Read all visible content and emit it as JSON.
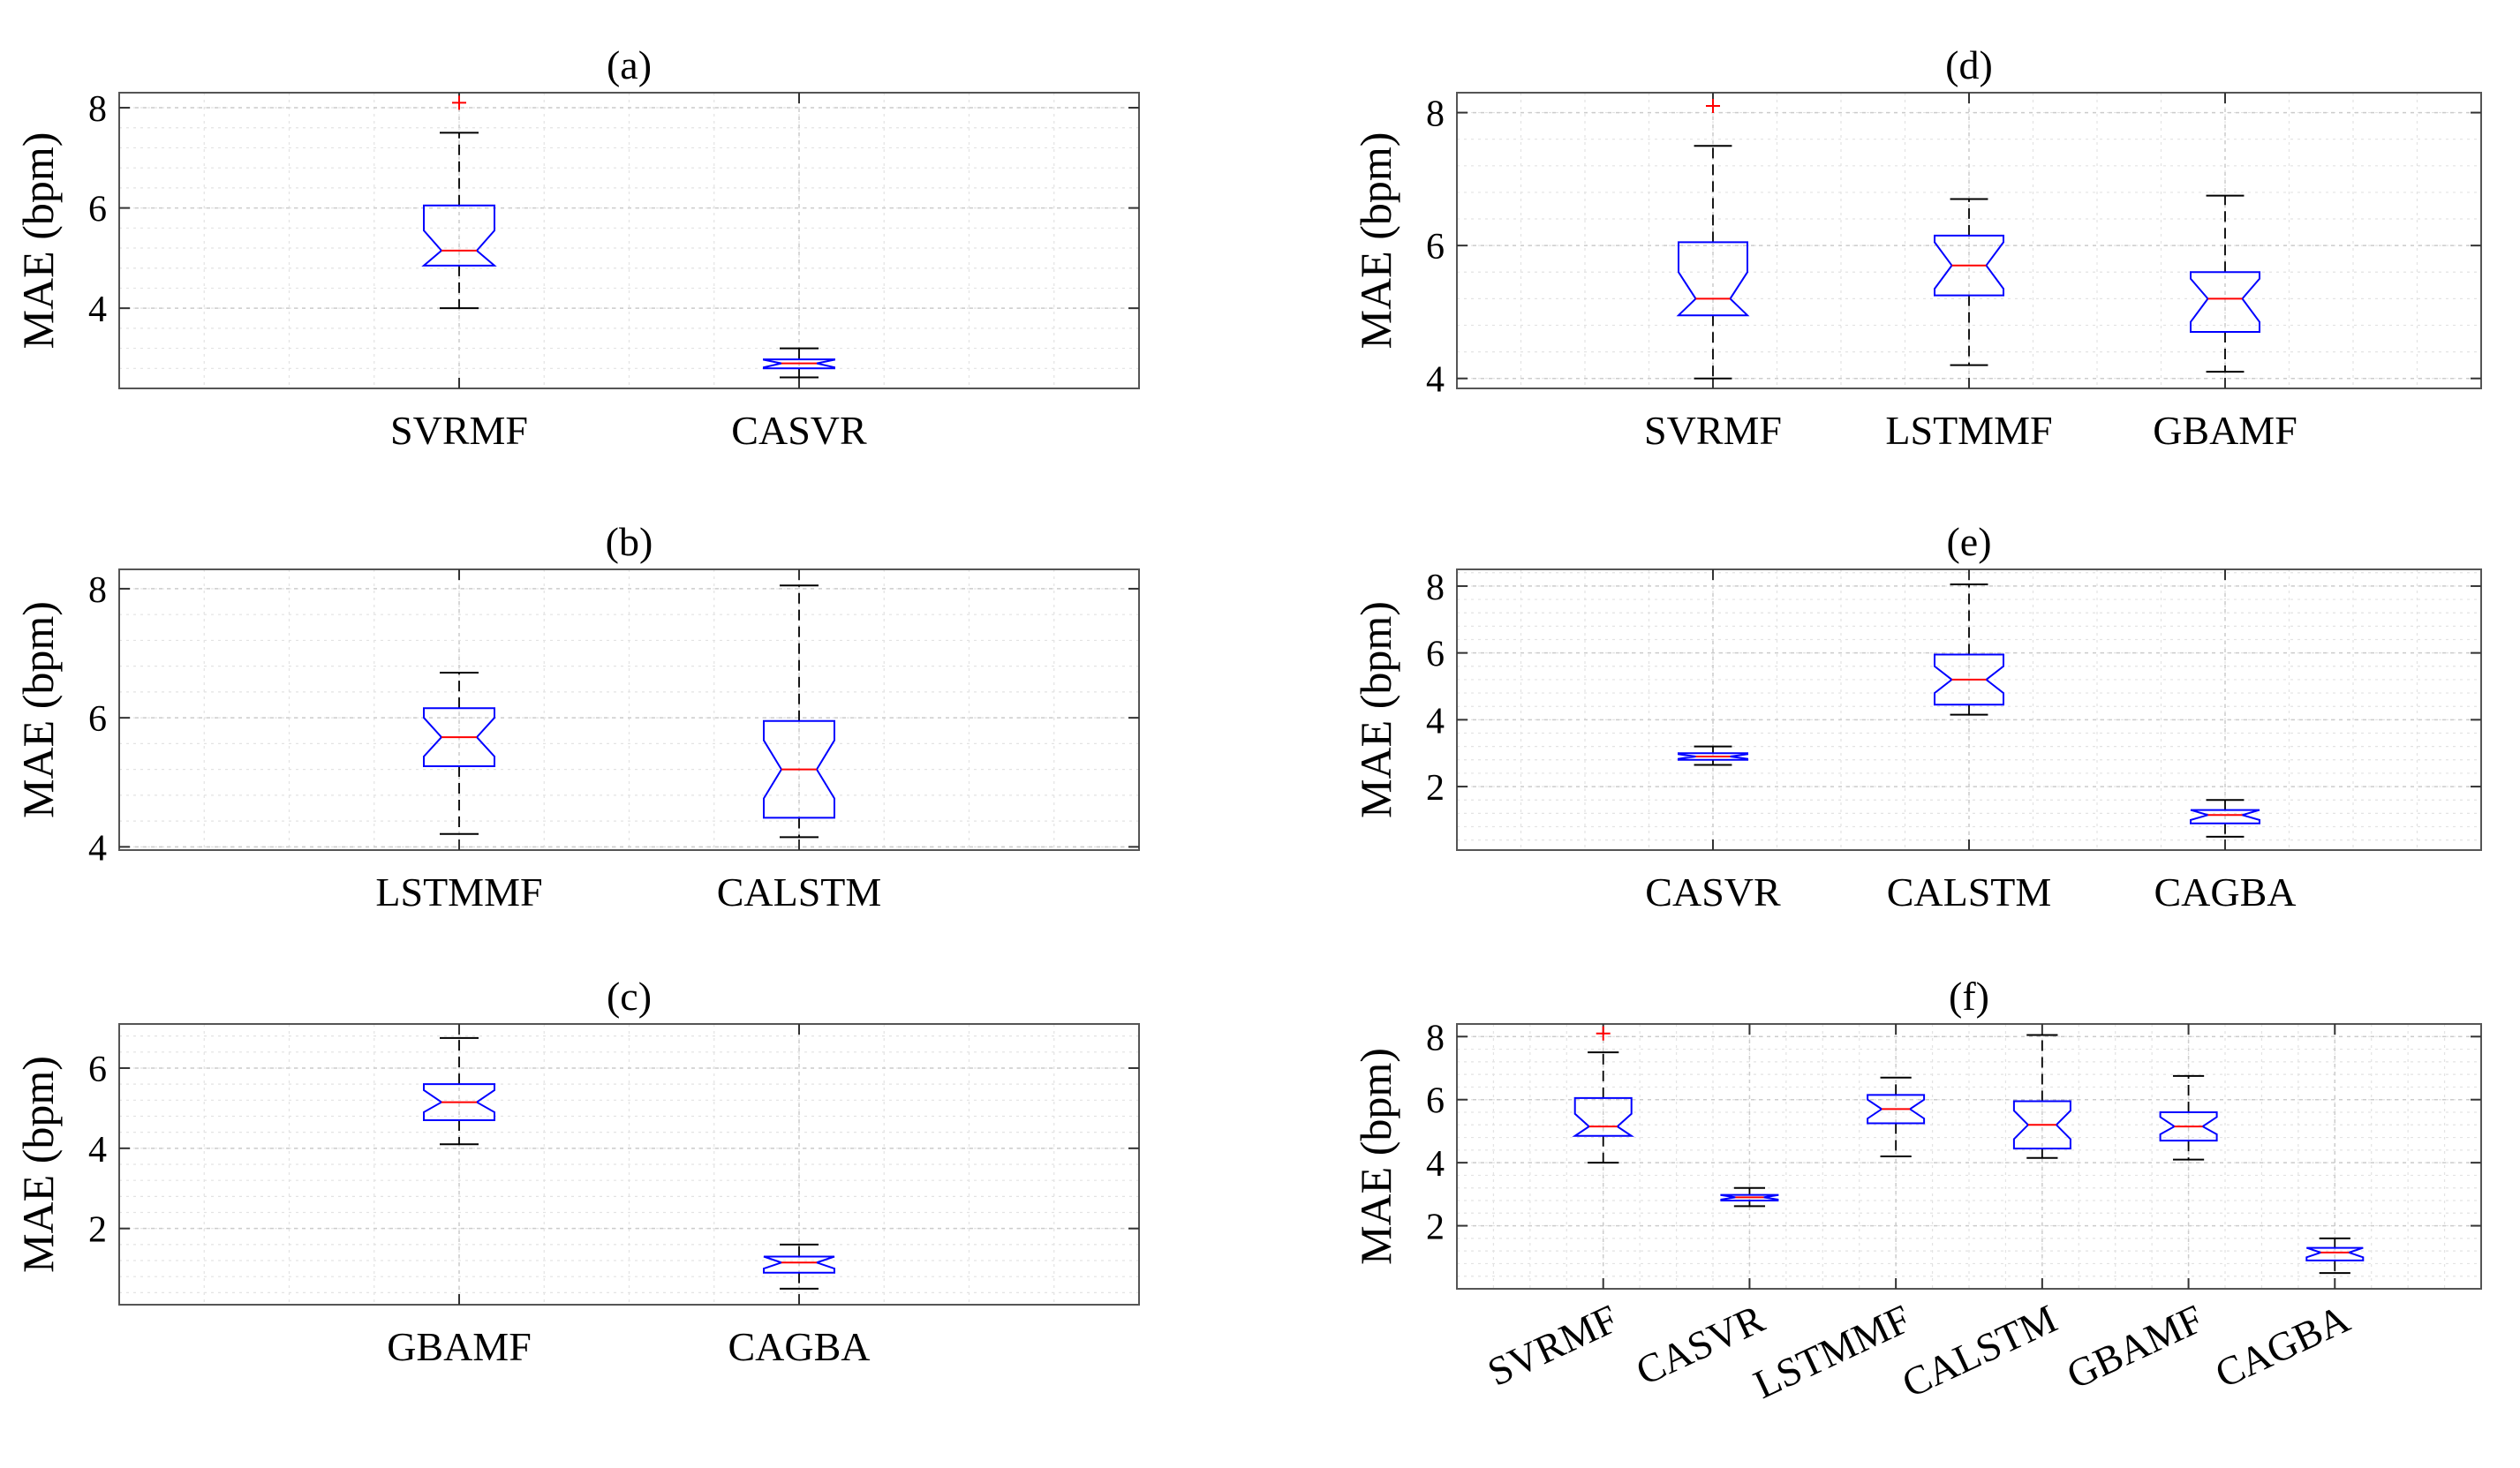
{
  "figure": {
    "background": "#ffffff",
    "box_color": "#0000ff",
    "median_color": "#ff0000",
    "whisker_color": "#000000",
    "outlier_color": "#ff0000",
    "grid_color": "#cccccc"
  },
  "chart_data": [
    {
      "panel": "a",
      "type": "boxplot",
      "title": "(a)",
      "xlabel": "",
      "ylabel": "MAE (bpm)",
      "ylim": [
        2.4,
        8.3
      ],
      "yticks": [
        4,
        6,
        8
      ],
      "grid": true,
      "notched": true,
      "categories": [
        "SVRMF",
        "CASVR"
      ],
      "boxes": [
        {
          "name": "SVRMF",
          "min": 4.0,
          "q1": 4.85,
          "median": 5.15,
          "q3": 6.05,
          "max": 7.5,
          "notch_low": 4.85,
          "notch_high": 5.55,
          "outliers": [
            8.1
          ]
        },
        {
          "name": "CASVR",
          "min": 2.62,
          "q1": 2.8,
          "median": 2.9,
          "q3": 2.98,
          "max": 3.2,
          "notch_low": 2.82,
          "notch_high": 2.97,
          "outliers": []
        }
      ]
    },
    {
      "panel": "b",
      "type": "boxplot",
      "title": "(b)",
      "xlabel": "",
      "ylabel": "MAE (bpm)",
      "ylim": [
        3.95,
        8.3
      ],
      "yticks": [
        4,
        6,
        8
      ],
      "grid": true,
      "notched": true,
      "categories": [
        "LSTMMF",
        "CALSTM"
      ],
      "boxes": [
        {
          "name": "LSTMMF",
          "min": 4.2,
          "q1": 5.25,
          "median": 5.7,
          "q3": 6.15,
          "max": 6.7,
          "notch_low": 5.4,
          "notch_high": 6.0,
          "outliers": []
        },
        {
          "name": "CALSTM",
          "min": 4.15,
          "q1": 4.45,
          "median": 5.2,
          "q3": 5.95,
          "max": 8.05,
          "notch_low": 4.75,
          "notch_high": 5.65,
          "outliers": []
        }
      ]
    },
    {
      "panel": "c",
      "type": "boxplot",
      "title": "(c)",
      "xlabel": "",
      "ylabel": "MAE (bpm)",
      "ylim": [
        0.1,
        7.1
      ],
      "yticks": [
        2,
        4,
        6
      ],
      "grid": true,
      "notched": true,
      "categories": [
        "GBAMF",
        "CAGBA"
      ],
      "boxes": [
        {
          "name": "GBAMF",
          "min": 4.1,
          "q1": 4.7,
          "median": 5.15,
          "q3": 5.6,
          "max": 6.75,
          "notch_low": 4.9,
          "notch_high": 5.45,
          "outliers": []
        },
        {
          "name": "CAGBA",
          "min": 0.5,
          "q1": 0.9,
          "median": 1.15,
          "q3": 1.3,
          "max": 1.6,
          "notch_low": 1.0,
          "notch_high": 1.3,
          "outliers": []
        }
      ]
    },
    {
      "panel": "d",
      "type": "boxplot",
      "title": "(d)",
      "xlabel": "",
      "ylabel": "MAE (bpm)",
      "ylim": [
        3.85,
        8.3
      ],
      "yticks": [
        4,
        6,
        8
      ],
      "grid": true,
      "notched": true,
      "categories": [
        "SVRMF",
        "LSTMMF",
        "GBAMF"
      ],
      "boxes": [
        {
          "name": "SVRMF",
          "min": 4.0,
          "q1": 4.95,
          "median": 5.2,
          "q3": 6.05,
          "max": 7.5,
          "notch_low": 4.8,
          "notch_high": 5.6,
          "outliers": [
            8.1
          ]
        },
        {
          "name": "LSTMMF",
          "min": 4.2,
          "q1": 5.25,
          "median": 5.7,
          "q3": 6.15,
          "max": 6.7,
          "notch_low": 5.35,
          "notch_high": 6.05,
          "outliers": []
        },
        {
          "name": "GBAMF",
          "min": 4.1,
          "q1": 4.7,
          "median": 5.2,
          "q3": 5.6,
          "max": 6.75,
          "notch_low": 4.85,
          "notch_high": 5.5,
          "outliers": []
        }
      ]
    },
    {
      "panel": "e",
      "type": "boxplot",
      "title": "(e)",
      "xlabel": "",
      "ylabel": "MAE (bpm)",
      "ylim": [
        0.1,
        8.5
      ],
      "yticks": [
        2,
        4,
        6,
        8
      ],
      "grid": true,
      "notched": true,
      "categories": [
        "CASVR",
        "CALSTM",
        "CAGBA"
      ],
      "boxes": [
        {
          "name": "CASVR",
          "min": 2.65,
          "q1": 2.8,
          "median": 2.9,
          "q3": 3.0,
          "max": 3.2,
          "notch_low": 2.83,
          "notch_high": 2.97,
          "outliers": []
        },
        {
          "name": "CALSTM",
          "min": 4.15,
          "q1": 4.45,
          "median": 5.2,
          "q3": 5.95,
          "max": 8.05,
          "notch_low": 4.8,
          "notch_high": 5.6,
          "outliers": []
        },
        {
          "name": "CAGBA",
          "min": 0.5,
          "q1": 0.9,
          "median": 1.15,
          "q3": 1.3,
          "max": 1.6,
          "notch_low": 1.0,
          "notch_high": 1.3,
          "outliers": []
        }
      ]
    },
    {
      "panel": "f",
      "type": "boxplot",
      "title": "(f)",
      "xlabel": "",
      "ylabel": "MAE (bpm)",
      "ylim": [
        0.0,
        8.4
      ],
      "yticks": [
        2,
        4,
        6,
        8
      ],
      "grid": true,
      "notched": true,
      "categories": [
        "SVRMF",
        "CASVR",
        "LSTMMF",
        "CALSTM",
        "GBAMF",
        "CAGBA"
      ],
      "boxes": [
        {
          "name": "SVRMF",
          "min": 4.0,
          "q1": 4.85,
          "median": 5.15,
          "q3": 6.05,
          "max": 7.5,
          "notch_low": 4.85,
          "notch_high": 5.55,
          "outliers": [
            8.1
          ]
        },
        {
          "name": "CASVR",
          "min": 2.62,
          "q1": 2.8,
          "median": 2.9,
          "q3": 2.98,
          "max": 3.2,
          "notch_low": 2.83,
          "notch_high": 2.97,
          "outliers": []
        },
        {
          "name": "LSTMMF",
          "min": 4.2,
          "q1": 5.25,
          "median": 5.7,
          "q3": 6.15,
          "max": 6.7,
          "notch_low": 5.4,
          "notch_high": 6.0,
          "outliers": []
        },
        {
          "name": "CALSTM",
          "min": 4.15,
          "q1": 4.45,
          "median": 5.2,
          "q3": 5.95,
          "max": 8.05,
          "notch_low": 4.75,
          "notch_high": 5.65,
          "outliers": []
        },
        {
          "name": "GBAMF",
          "min": 4.1,
          "q1": 4.7,
          "median": 5.15,
          "q3": 5.6,
          "max": 6.75,
          "notch_low": 4.9,
          "notch_high": 5.45,
          "outliers": []
        },
        {
          "name": "CAGBA",
          "min": 0.5,
          "q1": 0.9,
          "median": 1.15,
          "q3": 1.3,
          "max": 1.6,
          "notch_low": 1.0,
          "notch_high": 1.3,
          "outliers": []
        }
      ]
    }
  ]
}
